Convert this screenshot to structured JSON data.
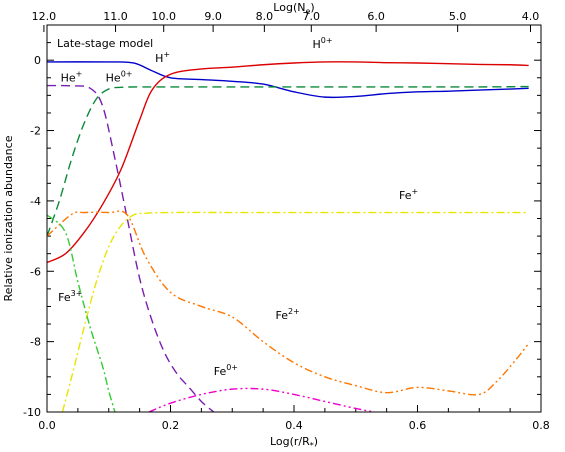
{
  "chart_data": {
    "type": "line",
    "title": "",
    "xlabel": "Log(r/R*)",
    "ylabel": "Relative ionization abundance",
    "top_xlabel": "Log(Ne)",
    "panel_label": "Late-stage model",
    "xlim": [
      0.0,
      0.8
    ],
    "ylim": [
      -10,
      1
    ],
    "x_ticks": [
      0.0,
      0.2,
      0.4,
      0.6,
      0.8
    ],
    "x_tick_labels": [
      "0.0",
      "0.2",
      "0.4",
      "0.6",
      "0.8"
    ],
    "y_ticks": [
      -10,
      -8,
      -6,
      -4,
      -2,
      0
    ],
    "y_tick_labels": [
      "-10",
      "-8",
      "-6",
      "-4",
      "-2",
      "0"
    ],
    "top_ticks": [
      {
        "label": "12.0",
        "x": -0.005
      },
      {
        "label": "11.0",
        "x": 0.111
      },
      {
        "label": "10.0",
        "x": 0.189
      },
      {
        "label": "9.0",
        "x": 0.269
      },
      {
        "label": "8.0",
        "x": 0.352
      },
      {
        "label": "7.0",
        "x": 0.428
      },
      {
        "label": "6.0",
        "x": 0.533
      },
      {
        "label": "5.0",
        "x": 0.665
      },
      {
        "label": "4.0",
        "x": 0.783
      }
    ],
    "series": [
      {
        "name": "H+",
        "color": "#0000cc",
        "dash": "solid",
        "x": [
          0.0,
          0.1,
          0.14,
          0.17,
          0.2,
          0.25,
          0.3,
          0.35,
          0.4,
          0.45,
          0.5,
          0.55,
          0.6,
          0.65,
          0.7,
          0.75,
          0.78
        ],
        "y": [
          -0.05,
          -0.05,
          -0.08,
          -0.3,
          -0.5,
          -0.55,
          -0.6,
          -0.68,
          -0.9,
          -1.05,
          -1.03,
          -0.95,
          -0.9,
          -0.88,
          -0.85,
          -0.82,
          -0.8
        ]
      },
      {
        "name": "H0+",
        "color": "#dd0000",
        "dash": "solid",
        "x": [
          0.0,
          0.03,
          0.06,
          0.09,
          0.12,
          0.15,
          0.17,
          0.2,
          0.25,
          0.3,
          0.35,
          0.4,
          0.45,
          0.5,
          0.55,
          0.6,
          0.65,
          0.7,
          0.75,
          0.78
        ],
        "y": [
          -5.75,
          -5.5,
          -4.9,
          -4.1,
          -3.1,
          -1.7,
          -0.85,
          -0.4,
          -0.25,
          -0.2,
          -0.13,
          -0.08,
          -0.05,
          -0.05,
          -0.07,
          -0.08,
          -0.1,
          -0.12,
          -0.13,
          -0.15
        ]
      },
      {
        "name": "He+",
        "color": "#7a1fb0",
        "dash": "dashed",
        "x": [
          0.0,
          0.04,
          0.07,
          0.09,
          0.11,
          0.13,
          0.15,
          0.17,
          0.19,
          0.21,
          0.23,
          0.25,
          0.27
        ],
        "y": [
          -0.72,
          -0.73,
          -0.8,
          -1.3,
          -2.8,
          -4.5,
          -6.2,
          -7.4,
          -8.3,
          -8.9,
          -9.3,
          -9.7,
          -10.0
        ]
      },
      {
        "name": "He0+",
        "color": "#0a8a3a",
        "dash": "dashed",
        "x": [
          0.0,
          0.02,
          0.04,
          0.06,
          0.08,
          0.1,
          0.12,
          0.15,
          0.2,
          0.3,
          0.4,
          0.5,
          0.6,
          0.7,
          0.78
        ],
        "y": [
          -5.0,
          -4.0,
          -2.8,
          -1.8,
          -1.1,
          -0.82,
          -0.77,
          -0.76,
          -0.76,
          -0.76,
          -0.76,
          -0.76,
          -0.76,
          -0.76,
          -0.75
        ]
      },
      {
        "name": "Fe+",
        "color": "#e6e600",
        "dash": "dashdot",
        "x": [
          0.025,
          0.04,
          0.06,
          0.08,
          0.1,
          0.12,
          0.14,
          0.16,
          0.2,
          0.3,
          0.4,
          0.5,
          0.6,
          0.7,
          0.78
        ],
        "y": [
          -10.0,
          -9.0,
          -7.6,
          -6.3,
          -5.3,
          -4.7,
          -4.4,
          -4.35,
          -4.33,
          -4.33,
          -4.33,
          -4.33,
          -4.33,
          -4.33,
          -4.33
        ]
      },
      {
        "name": "Fe2+",
        "color": "#ff7700",
        "dash": "dashdotdot",
        "x": [
          0.0,
          0.04,
          0.06,
          0.1,
          0.13,
          0.16,
          0.2,
          0.25,
          0.3,
          0.35,
          0.4,
          0.45,
          0.5,
          0.55,
          0.6,
          0.65,
          0.7,
          0.73,
          0.76,
          0.78
        ],
        "y": [
          -5.0,
          -4.38,
          -4.33,
          -4.33,
          -4.4,
          -5.6,
          -6.6,
          -7.0,
          -7.3,
          -8.0,
          -8.6,
          -9.0,
          -9.25,
          -9.45,
          -9.3,
          -9.4,
          -9.5,
          -9.1,
          -8.5,
          -8.05
        ]
      },
      {
        "name": "Fe3+",
        "color": "#33cc33",
        "dash": "dashdot",
        "x": [
          0.0,
          0.03,
          0.05,
          0.07,
          0.09,
          0.1,
          0.11
        ],
        "y": [
          -4.4,
          -4.9,
          -6.3,
          -7.6,
          -8.7,
          -9.4,
          -10.0
        ]
      },
      {
        "name": "Fe0+",
        "color": "#ee00cc",
        "dash": "dashdotdot",
        "x": [
          0.165,
          0.2,
          0.25,
          0.3,
          0.35,
          0.4,
          0.45,
          0.5,
          0.53
        ],
        "y": [
          -10.0,
          -9.75,
          -9.5,
          -9.35,
          -9.35,
          -9.5,
          -9.7,
          -9.9,
          -10.0
        ]
      }
    ],
    "annotations": [
      {
        "text": "H",
        "sup": "+",
        "x": 0.175,
        "y": -0.05
      },
      {
        "text": "H",
        "sup": "0+",
        "x": 0.43,
        "y": 0.35
      },
      {
        "text": "He",
        "sup": "+",
        "x": 0.022,
        "y": -0.6
      },
      {
        "text": "He",
        "sup": "0+",
        "x": 0.095,
        "y": -0.6
      },
      {
        "text": "Fe",
        "sup": "+",
        "x": 0.57,
        "y": -3.95
      },
      {
        "text": "Fe",
        "sup": "2+",
        "x": 0.37,
        "y": -7.35
      },
      {
        "text": "Fe",
        "sup": "3+",
        "x": 0.018,
        "y": -6.85
      },
      {
        "text": "Fe",
        "sup": "0+",
        "x": 0.27,
        "y": -8.95
      }
    ]
  }
}
